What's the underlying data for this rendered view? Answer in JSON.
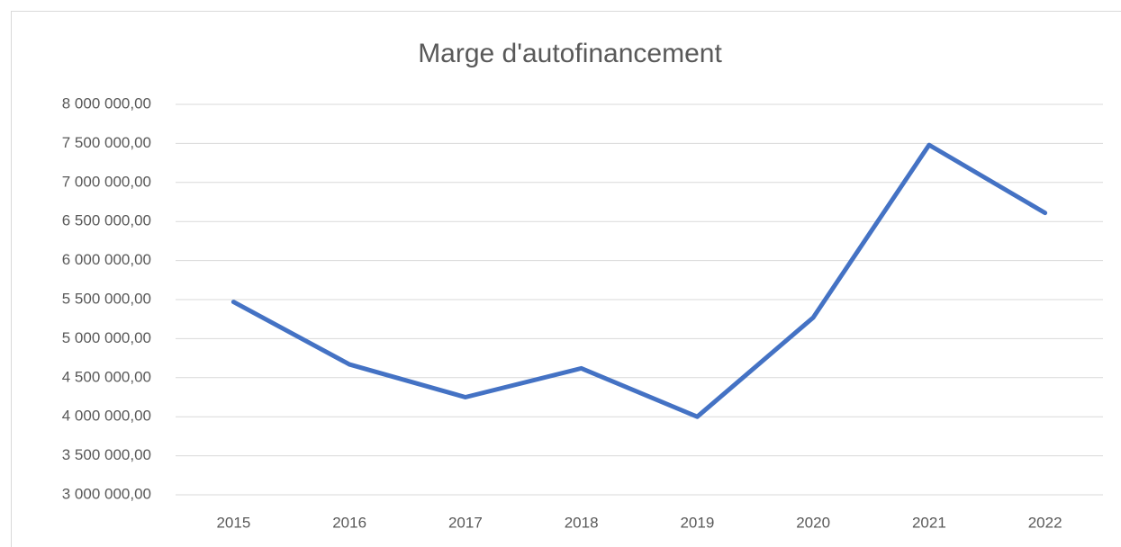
{
  "chart_data": {
    "type": "line",
    "title": "Marge d'autofinancement",
    "categories": [
      "2015",
      "2016",
      "2017",
      "2018",
      "2019",
      "2020",
      "2021",
      "2022"
    ],
    "series": [
      {
        "name": "Marge d'autofinancement",
        "color": "#4472c4",
        "values": [
          5470000,
          4670000,
          4250000,
          4620000,
          4000000,
          5270000,
          7480000,
          6610000
        ]
      }
    ],
    "ylim": [
      3000000,
      8000000
    ],
    "yticks": [
      {
        "value": 3000000,
        "label": "3 000 000,00"
      },
      {
        "value": 3500000,
        "label": "3 500 000,00"
      },
      {
        "value": 4000000,
        "label": "4 000 000,00"
      },
      {
        "value": 4500000,
        "label": "4 500 000,00"
      },
      {
        "value": 5000000,
        "label": "5 000 000,00"
      },
      {
        "value": 5500000,
        "label": "5 500 000,00"
      },
      {
        "value": 6000000,
        "label": "6 000 000,00"
      },
      {
        "value": 6500000,
        "label": "6 500 000,00"
      },
      {
        "value": 7000000,
        "label": "7 000 000,00"
      },
      {
        "value": 7500000,
        "label": "7 500 000,00"
      },
      {
        "value": 8000000,
        "label": "8 000 000,00"
      }
    ],
    "grid": true
  }
}
